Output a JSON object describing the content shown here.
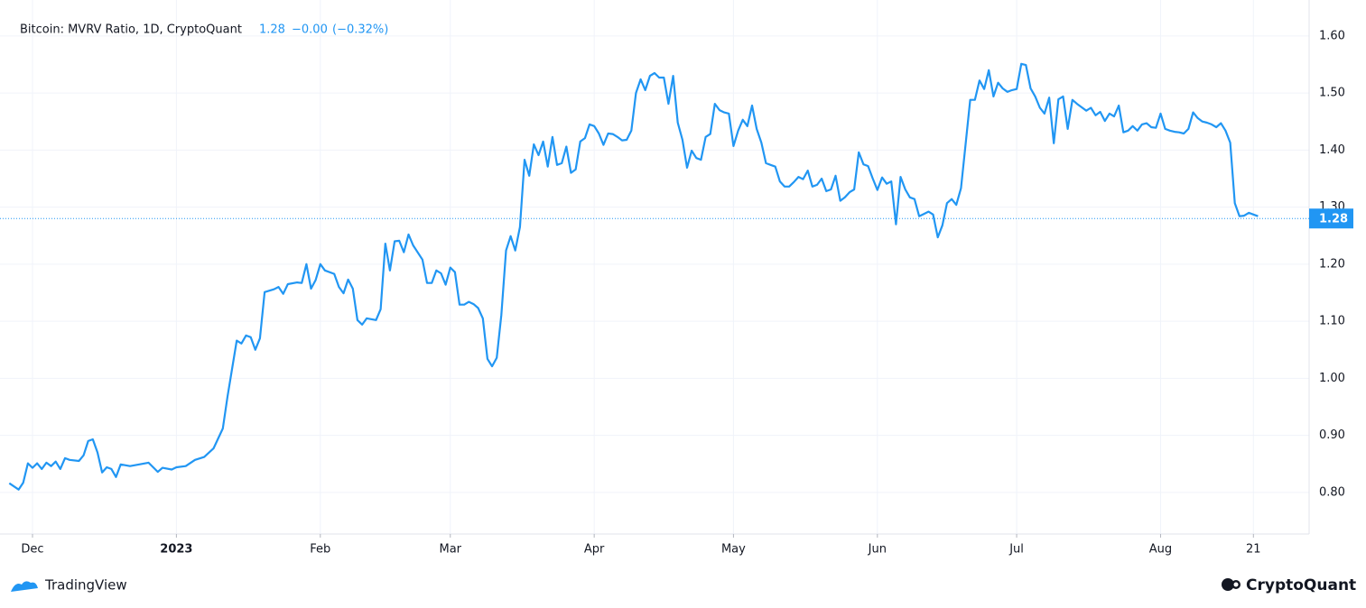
{
  "chart_data": {
    "type": "line",
    "title": "Bitcoin: MVRV Ratio, 1D, CryptoQuant",
    "last_value": 1.28,
    "change": "−0.00",
    "change_percent": "(−0.32%)",
    "x": [
      "2022-11-26",
      "2022-11-28",
      "2022-11-29",
      "2022-11-30",
      "2022-12-01",
      "2022-12-02",
      "2022-12-03",
      "2022-12-04",
      "2022-12-05",
      "2022-12-06",
      "2022-12-07",
      "2022-12-08",
      "2022-12-09",
      "2022-12-11",
      "2022-12-12",
      "2022-12-13",
      "2022-12-14",
      "2022-12-15",
      "2022-12-16",
      "2022-12-17",
      "2022-12-18",
      "2022-12-19",
      "2022-12-20",
      "2022-12-22",
      "2022-12-24",
      "2022-12-26",
      "2022-12-28",
      "2022-12-29",
      "2022-12-31",
      "2023-01-01",
      "2023-01-03",
      "2023-01-05",
      "2023-01-07",
      "2023-01-09",
      "2023-01-11",
      "2023-01-12",
      "2023-01-14",
      "2023-01-15",
      "2023-01-16",
      "2023-01-17",
      "2023-01-18",
      "2023-01-19",
      "2023-01-20",
      "2023-01-22",
      "2023-01-23",
      "2023-01-24",
      "2023-01-25",
      "2023-01-27",
      "2023-01-28",
      "2023-01-29",
      "2023-01-30",
      "2023-01-31",
      "2023-02-01",
      "2023-02-02",
      "2023-02-04",
      "2023-02-05",
      "2023-02-06",
      "2023-02-07",
      "2023-02-08",
      "2023-02-09",
      "2023-02-10",
      "2023-02-11",
      "2023-02-13",
      "2023-02-14",
      "2023-02-15",
      "2023-02-16",
      "2023-02-17",
      "2023-02-18",
      "2023-02-19",
      "2023-02-20",
      "2023-02-21",
      "2023-02-23",
      "2023-02-24",
      "2023-02-25",
      "2023-02-26",
      "2023-02-27",
      "2023-02-28",
      "2023-03-01",
      "2023-03-02",
      "2023-03-03",
      "2023-03-04",
      "2023-03-05",
      "2023-03-06",
      "2023-03-07",
      "2023-03-08",
      "2023-03-09",
      "2023-03-10",
      "2023-03-11",
      "2023-03-12",
      "2023-03-13",
      "2023-03-14",
      "2023-03-15",
      "2023-03-16",
      "2023-03-17",
      "2023-03-18",
      "2023-03-19",
      "2023-03-20",
      "2023-03-21",
      "2023-03-22",
      "2023-03-23",
      "2023-03-24",
      "2023-03-25",
      "2023-03-26",
      "2023-03-27",
      "2023-03-28",
      "2023-03-29",
      "2023-03-30",
      "2023-03-31",
      "2023-04-01",
      "2023-04-02",
      "2023-04-03",
      "2023-04-04",
      "2023-04-05",
      "2023-04-06",
      "2023-04-07",
      "2023-04-08",
      "2023-04-09",
      "2023-04-10",
      "2023-04-11",
      "2023-04-12",
      "2023-04-13",
      "2023-04-14",
      "2023-04-15",
      "2023-04-16",
      "2023-04-17",
      "2023-04-18",
      "2023-04-19",
      "2023-04-20",
      "2023-04-21",
      "2023-04-22",
      "2023-04-23",
      "2023-04-24",
      "2023-04-25",
      "2023-04-26",
      "2023-04-27",
      "2023-04-28",
      "2023-04-29",
      "2023-04-30",
      "2023-05-01",
      "2023-05-02",
      "2023-05-03",
      "2023-05-04",
      "2023-05-05",
      "2023-05-06",
      "2023-05-07",
      "2023-05-08",
      "2023-05-09",
      "2023-05-10",
      "2023-05-11",
      "2023-05-12",
      "2023-05-13",
      "2023-05-14",
      "2023-05-15",
      "2023-05-16",
      "2023-05-17",
      "2023-05-18",
      "2023-05-19",
      "2023-05-20",
      "2023-05-21",
      "2023-05-22",
      "2023-05-23",
      "2023-05-24",
      "2023-05-25",
      "2023-05-26",
      "2023-05-27",
      "2023-05-28",
      "2023-05-29",
      "2023-05-30",
      "2023-05-31",
      "2023-06-01",
      "2023-06-02",
      "2023-06-03",
      "2023-06-04",
      "2023-06-05",
      "2023-06-06",
      "2023-06-07",
      "2023-06-08",
      "2023-06-09",
      "2023-06-10",
      "2023-06-11",
      "2023-06-12",
      "2023-06-13",
      "2023-06-14",
      "2023-06-15",
      "2023-06-16",
      "2023-06-17",
      "2023-06-18",
      "2023-06-19",
      "2023-06-20",
      "2023-06-21",
      "2023-06-22",
      "2023-06-23",
      "2023-06-24",
      "2023-06-25",
      "2023-06-26",
      "2023-06-27",
      "2023-06-28",
      "2023-06-29",
      "2023-06-30",
      "2023-07-01",
      "2023-07-02",
      "2023-07-03",
      "2023-07-04",
      "2023-07-05",
      "2023-07-06",
      "2023-07-07",
      "2023-07-08",
      "2023-07-09",
      "2023-07-10",
      "2023-07-11",
      "2023-07-12",
      "2023-07-13",
      "2023-07-14",
      "2023-07-15",
      "2023-07-16",
      "2023-07-17",
      "2023-07-18",
      "2023-07-19",
      "2023-07-20",
      "2023-07-21",
      "2023-07-22",
      "2023-07-23",
      "2023-07-24",
      "2023-07-25",
      "2023-07-26",
      "2023-07-27",
      "2023-07-28",
      "2023-07-29",
      "2023-07-30",
      "2023-07-31",
      "2023-08-01",
      "2023-08-02",
      "2023-08-03",
      "2023-08-04",
      "2023-08-05",
      "2023-08-06",
      "2023-08-07",
      "2023-08-08",
      "2023-08-09",
      "2023-08-10",
      "2023-08-11",
      "2023-08-12",
      "2023-08-13",
      "2023-08-14",
      "2023-08-15",
      "2023-08-16",
      "2023-08-17",
      "2023-08-18",
      "2023-08-19",
      "2023-08-20",
      "2023-08-21",
      "2023-08-22"
    ],
    "series": [
      {
        "color": "#2196f3",
        "values": [
          0.816,
          0.805,
          0.817,
          0.851,
          0.843,
          0.851,
          0.841,
          0.852,
          0.846,
          0.854,
          0.841,
          0.86,
          0.857,
          0.855,
          0.865,
          0.89,
          0.893,
          0.87,
          0.835,
          0.844,
          0.841,
          0.827,
          0.849,
          0.846,
          0.849,
          0.852,
          0.836,
          0.843,
          0.84,
          0.844,
          0.846,
          0.857,
          0.862,
          0.877,
          0.912,
          0.968,
          1.066,
          1.061,
          1.075,
          1.072,
          1.05,
          1.07,
          1.151,
          1.156,
          1.16,
          1.148,
          1.165,
          1.168,
          1.167,
          1.2,
          1.157,
          1.172,
          1.2,
          1.189,
          1.183,
          1.16,
          1.149,
          1.173,
          1.157,
          1.102,
          1.094,
          1.105,
          1.102,
          1.121,
          1.236,
          1.189,
          1.24,
          1.241,
          1.221,
          1.252,
          1.233,
          1.208,
          1.167,
          1.167,
          1.189,
          1.184,
          1.164,
          1.194,
          1.186,
          1.129,
          1.129,
          1.134,
          1.13,
          1.123,
          1.105,
          1.034,
          1.021,
          1.036,
          1.111,
          1.224,
          1.249,
          1.224,
          1.265,
          1.383,
          1.355,
          1.41,
          1.391,
          1.415,
          1.371,
          1.423,
          1.374,
          1.377,
          1.406,
          1.36,
          1.366,
          1.415,
          1.421,
          1.445,
          1.442,
          1.429,
          1.409,
          1.429,
          1.428,
          1.423,
          1.417,
          1.418,
          1.434,
          1.5,
          1.524,
          1.505,
          1.53,
          1.535,
          1.527,
          1.527,
          1.481,
          1.53,
          1.448,
          1.418,
          1.369,
          1.399,
          1.386,
          1.383,
          1.423,
          1.428,
          1.481,
          1.47,
          1.466,
          1.464,
          1.407,
          1.434,
          1.453,
          1.442,
          1.478,
          1.437,
          1.413,
          1.377,
          1.374,
          1.371,
          1.345,
          1.336,
          1.336,
          1.344,
          1.353,
          1.349,
          1.364,
          1.336,
          1.339,
          1.35,
          1.328,
          1.331,
          1.355,
          1.311,
          1.317,
          1.326,
          1.331,
          1.396,
          1.375,
          1.372,
          1.35,
          1.33,
          1.352,
          1.341,
          1.345,
          1.27,
          1.353,
          1.331,
          1.317,
          1.314,
          1.284,
          1.288,
          1.292,
          1.287,
          1.247,
          1.268,
          1.307,
          1.314,
          1.304,
          1.333,
          1.41,
          1.488,
          1.488,
          1.522,
          1.507,
          1.54,
          1.494,
          1.518,
          1.508,
          1.502,
          1.505,
          1.507,
          1.551,
          1.549,
          1.508,
          1.494,
          1.474,
          1.464,
          1.492,
          1.412,
          1.489,
          1.494,
          1.437,
          1.488,
          1.481,
          1.475,
          1.469,
          1.474,
          1.461,
          1.467,
          1.451,
          1.464,
          1.459,
          1.478,
          1.431,
          1.434,
          1.442,
          1.434,
          1.445,
          1.447,
          1.44,
          1.439,
          1.464,
          1.437,
          1.434,
          1.432,
          1.431,
          1.429,
          1.437,
          1.466,
          1.456,
          1.45,
          1.448,
          1.445,
          1.44,
          1.447,
          1.434,
          1.413,
          1.307,
          1.284,
          1.285,
          1.29,
          1.287,
          1.284
        ]
      }
    ],
    "xlim": [
      "2022-11-24",
      "2023-09-02"
    ],
    "xticks": [
      {
        "value": "2022-12-01",
        "label": "Dec"
      },
      {
        "value": "2023-01-01",
        "label": "2023"
      },
      {
        "value": "2023-02-01",
        "label": "Feb"
      },
      {
        "value": "2023-03-01",
        "label": "Mar"
      },
      {
        "value": "2023-04-01",
        "label": "Apr"
      },
      {
        "value": "2023-05-01",
        "label": "May"
      },
      {
        "value": "2023-06-01",
        "label": "Jun"
      },
      {
        "value": "2023-07-01",
        "label": "Jul"
      },
      {
        "value": "2023-08-01",
        "label": "Aug"
      },
      {
        "value": "2023-08-21",
        "label": "21"
      }
    ],
    "ylim": [
      0.727,
      1.663
    ],
    "yticks": [
      {
        "value": 0.8,
        "label": "0.80"
      },
      {
        "value": 0.9,
        "label": "0.90"
      },
      {
        "value": 1,
        "label": "1.00"
      },
      {
        "value": 1.1,
        "label": "1.10"
      },
      {
        "value": 1.2,
        "label": "1.20"
      },
      {
        "value": 1.3,
        "label": "1.30"
      },
      {
        "value": 1.4,
        "label": "1.40"
      },
      {
        "value": 1.5,
        "label": "1.50"
      },
      {
        "value": 1.6,
        "label": "1.60"
      }
    ],
    "grid": true
  },
  "brand_left": "TradingView",
  "brand_right": "CryptoQuant"
}
